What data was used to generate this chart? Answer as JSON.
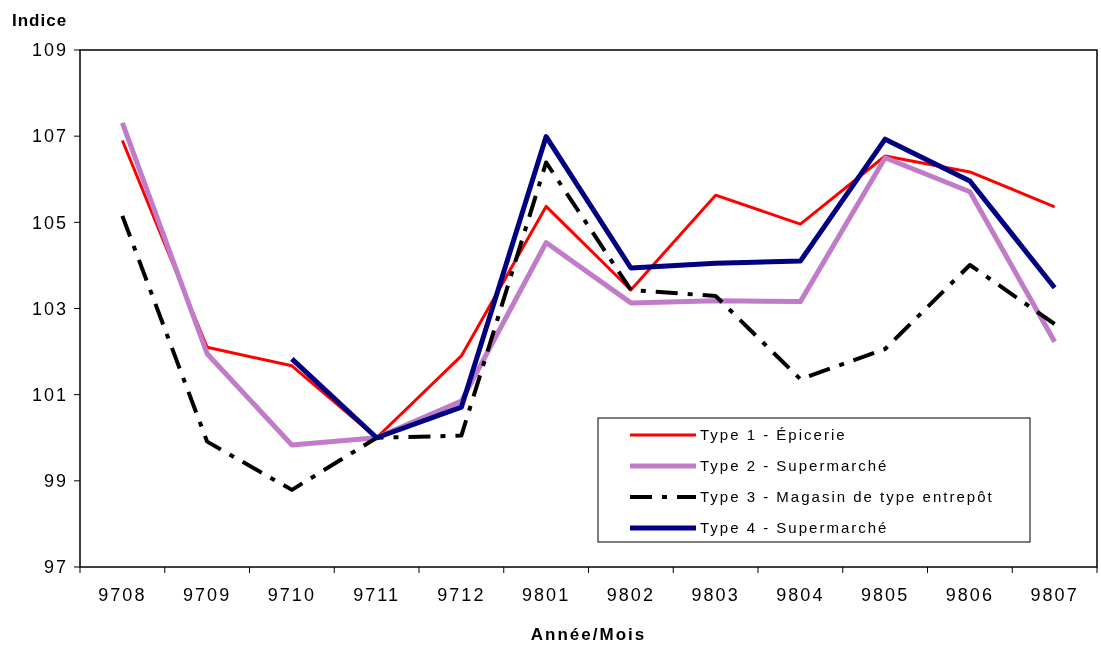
{
  "chart_data": {
    "type": "line",
    "ylabel": "Indice",
    "xlabel": "Année/Mois",
    "categories": [
      "9708",
      "9709",
      "9710",
      "9711",
      "9712",
      "9801",
      "9802",
      "9803",
      "9804",
      "9805",
      "9806",
      "9807"
    ],
    "ylim": [
      97,
      109
    ],
    "yticks": [
      97,
      99,
      101,
      103,
      105,
      107,
      109
    ],
    "grid": false,
    "legend": "bottom right",
    "series": [
      {
        "name": "Type 1 - Épicerie",
        "color": "#ff0000",
        "line_style": "solid",
        "values": [
          106.9,
          102.1,
          101.67,
          100.0,
          101.9,
          105.37,
          103.43,
          105.63,
          104.96,
          106.54,
          106.17,
          105.36
        ]
      },
      {
        "name": "Type 2 - Supermarché",
        "color": "#c07cc8",
        "line_style": "solid",
        "values": [
          107.31,
          101.95,
          99.83,
          100.0,
          100.85,
          104.53,
          103.13,
          103.18,
          103.16,
          106.5,
          105.71,
          102.23
        ]
      },
      {
        "name": "Type 3 - Magasin de type entrepôt",
        "color": "#000000",
        "line_style": "dashed",
        "values": [
          105.15,
          99.91,
          98.79,
          100.0,
          100.05,
          106.39,
          103.43,
          103.29,
          101.36,
          102.06,
          104.01,
          102.64
        ]
      },
      {
        "name": "Type 4 - Supermarché",
        "color": "#000080",
        "line_style": "solid",
        "values": [
          null,
          null,
          101.83,
          100.0,
          100.71,
          106.99,
          103.94,
          104.05,
          104.1,
          106.93,
          105.96,
          103.48
        ]
      }
    ]
  }
}
